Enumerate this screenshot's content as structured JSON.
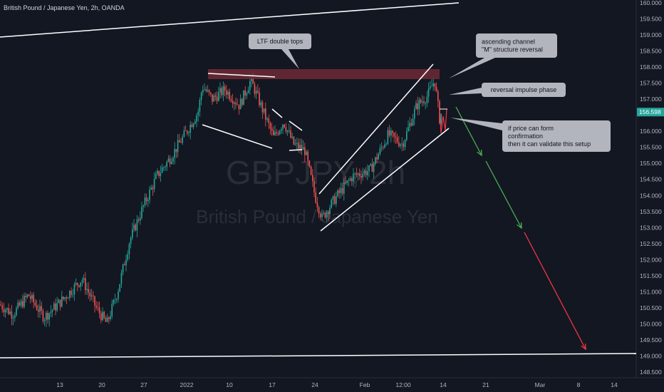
{
  "header": {
    "symbol_title": "British Pound / Japanese Yen, 2h, OANDA"
  },
  "watermark": {
    "ticker": "GBPJPY, 2h",
    "name": "British Pound / Japanese Yen"
  },
  "colors": {
    "background": "#131722",
    "up": "#26a69a",
    "down": "#ef5350",
    "annotation_line": "#ffffff",
    "resistance_zone": "#6e2a35",
    "callout_bg": "#b2b5be",
    "projection_down_green": "#4caf50",
    "projection_down_red": "#f23645",
    "price_label_bg": "#26a69a"
  },
  "chart_data": {
    "type": "candlestick",
    "title": "British Pound / Japanese Yen, 2h, OANDA",
    "x_ticks": [
      "13",
      "20",
      "27",
      "2022",
      "10",
      "17",
      "24",
      "Feb",
      "12:00",
      "14",
      "21",
      "Mar",
      "8",
      "14"
    ],
    "y_ticks": [
      "160.000",
      "159.500",
      "159.000",
      "158.500",
      "158.000",
      "157.500",
      "157.000",
      "156.598",
      "156.000",
      "155.500",
      "155.000",
      "154.500",
      "154.000",
      "153.500",
      "153.000",
      "152.500",
      "152.000",
      "151.500",
      "151.000",
      "150.500",
      "150.000",
      "149.500",
      "149.000",
      "148.500"
    ],
    "ylim": [
      148.35,
      160.1
    ],
    "last_price": 156.598,
    "annotations": [
      {
        "label": "LTF double tops"
      },
      {
        "label": "ascending channel\n\"M\" structure reversal"
      },
      {
        "label": "reversal impulse phase"
      },
      {
        "label": "if price can form\nconfirmation\nthen it can validate this setup"
      }
    ]
  }
}
